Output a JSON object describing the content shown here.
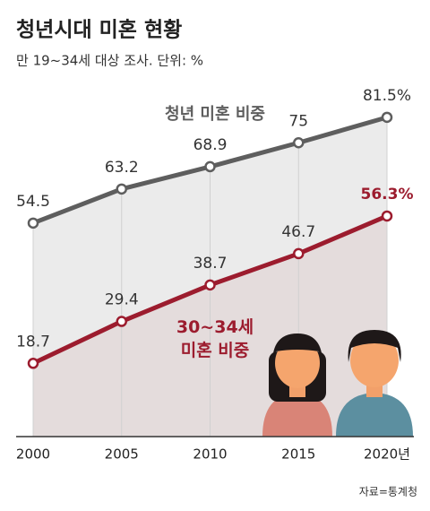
{
  "chart_data": {
    "type": "line",
    "title": "청년시대 미혼 현황",
    "subtitle": "만 19~34세 대상 조사. 단위: %",
    "source": "자료=통계청",
    "categories": [
      "2000",
      "2005",
      "2010",
      "2015",
      "2020년"
    ],
    "series": [
      {
        "name": "청년 미혼 비중",
        "color": "#5e5e5e",
        "values": [
          54.5,
          63.2,
          68.9,
          75,
          81.5
        ],
        "value_labels": [
          "54.5",
          "63.2",
          "68.9",
          "75",
          "81.5%"
        ]
      },
      {
        "name": "30~34세 미혼 비중",
        "color": "#9c1c2e",
        "values": [
          18.7,
          29.4,
          38.7,
          46.7,
          56.3
        ],
        "value_labels": [
          "18.7",
          "29.4",
          "38.7",
          "46.7",
          "56.3%"
        ]
      }
    ],
    "ylim": [
      0,
      100
    ]
  }
}
